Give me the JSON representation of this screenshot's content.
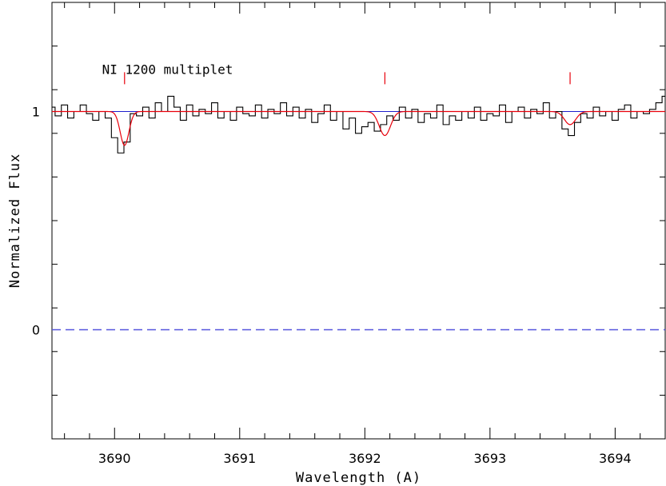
{
  "chart_data": {
    "type": "line",
    "xlabel": "Wavelength (A)",
    "ylabel": "Normalized Flux",
    "xlim": [
      3689.5,
      3694.4
    ],
    "ylim": [
      -0.5,
      1.5
    ],
    "x_ticks": [
      3690,
      3691,
      3692,
      3693,
      3694
    ],
    "x_tick_labels": [
      "3690",
      "3691",
      "3692",
      "3693",
      "3694"
    ],
    "y_ticks": [
      0,
      1
    ],
    "y_tick_labels": [
      "0",
      "1"
    ],
    "annotations": [
      {
        "text": "NI 1200 multiplet",
        "x": 3689.9,
        "y": 1.195
      }
    ],
    "line_markers": [
      {
        "x": 3690.08,
        "y_range": [
          1.125,
          1.18
        ],
        "color": "#e8000b"
      },
      {
        "x": 3692.16,
        "y_range": [
          1.125,
          1.18
        ],
        "color": "#e8000b"
      },
      {
        "x": 3693.64,
        "y_range": [
          1.125,
          1.18
        ],
        "color": "#e8000b"
      }
    ],
    "reference_lines": [
      {
        "name": "continuum",
        "y": 1.0,
        "color": "#1e1ecc",
        "style": "solid"
      },
      {
        "name": "zero",
        "y": 0.0,
        "color": "#5555dd",
        "style": "dashed"
      }
    ],
    "series": [
      {
        "name": "",
        "kind": "data-histogram",
        "color": "#000000",
        "x": [
          3689.5,
          3689.55,
          3689.6,
          3689.65,
          3689.7,
          3689.75,
          3689.8,
          3689.85,
          3689.9,
          3689.95,
          3690.0,
          3690.05,
          3690.1,
          3690.15,
          3690.2,
          3690.25,
          3690.3,
          3690.35,
          3690.4,
          3690.45,
          3690.5,
          3690.55,
          3690.6,
          3690.65,
          3690.7,
          3690.75,
          3690.8,
          3690.85,
          3690.9,
          3690.95,
          3691.0,
          3691.05,
          3691.1,
          3691.15,
          3691.2,
          3691.25,
          3691.3,
          3691.35,
          3691.4,
          3691.45,
          3691.5,
          3691.55,
          3691.6,
          3691.65,
          3691.7,
          3691.75,
          3691.8,
          3691.85,
          3691.9,
          3691.95,
          3692.0,
          3692.05,
          3692.1,
          3692.15,
          3692.2,
          3692.25,
          3692.3,
          3692.35,
          3692.4,
          3692.45,
          3692.5,
          3692.55,
          3692.6,
          3692.65,
          3692.7,
          3692.75,
          3692.8,
          3692.85,
          3692.9,
          3692.95,
          3693.0,
          3693.05,
          3693.1,
          3693.15,
          3693.2,
          3693.25,
          3693.3,
          3693.35,
          3693.4,
          3693.45,
          3693.5,
          3693.55,
          3693.6,
          3693.65,
          3693.7,
          3693.75,
          3693.8,
          3693.85,
          3693.9,
          3693.95,
          3694.0,
          3694.05,
          3694.1,
          3694.15,
          3694.2,
          3694.25,
          3694.3,
          3694.35,
          3694.4
        ],
        "y": [
          1.02,
          0.98,
          1.03,
          0.97,
          1.0,
          1.03,
          0.99,
          0.96,
          1.0,
          0.97,
          0.88,
          0.81,
          0.86,
          0.99,
          0.98,
          1.02,
          0.97,
          1.04,
          1.0,
          1.07,
          1.02,
          0.96,
          1.03,
          0.98,
          1.01,
          0.99,
          1.04,
          0.97,
          1.0,
          0.96,
          1.02,
          0.99,
          0.98,
          1.03,
          0.97,
          1.01,
          0.99,
          1.04,
          0.98,
          1.02,
          0.97,
          1.01,
          0.95,
          0.99,
          1.03,
          0.96,
          1.0,
          0.92,
          0.97,
          0.9,
          0.93,
          0.95,
          0.91,
          0.94,
          0.98,
          0.96,
          1.02,
          0.97,
          1.01,
          0.95,
          0.99,
          0.97,
          1.03,
          0.94,
          0.98,
          0.96,
          1.0,
          0.97,
          1.02,
          0.96,
          0.99,
          0.98,
          1.03,
          0.95,
          1.0,
          1.02,
          0.97,
          1.01,
          0.99,
          1.04,
          0.97,
          1.0,
          0.92,
          0.89,
          0.95,
          0.99,
          0.97,
          1.02,
          0.98,
          1.0,
          0.96,
          1.01,
          1.03,
          0.97,
          1.0,
          0.99,
          1.01,
          1.04,
          1.07
        ]
      },
      {
        "name": "",
        "kind": "model",
        "color": "#e8000b",
        "continuum": 1.0,
        "components": [
          {
            "center": 3690.08,
            "depth": 0.155,
            "sigma": 0.035
          },
          {
            "center": 3692.16,
            "depth": 0.11,
            "sigma": 0.045
          },
          {
            "center": 3693.64,
            "depth": 0.06,
            "sigma": 0.045
          }
        ]
      }
    ]
  }
}
